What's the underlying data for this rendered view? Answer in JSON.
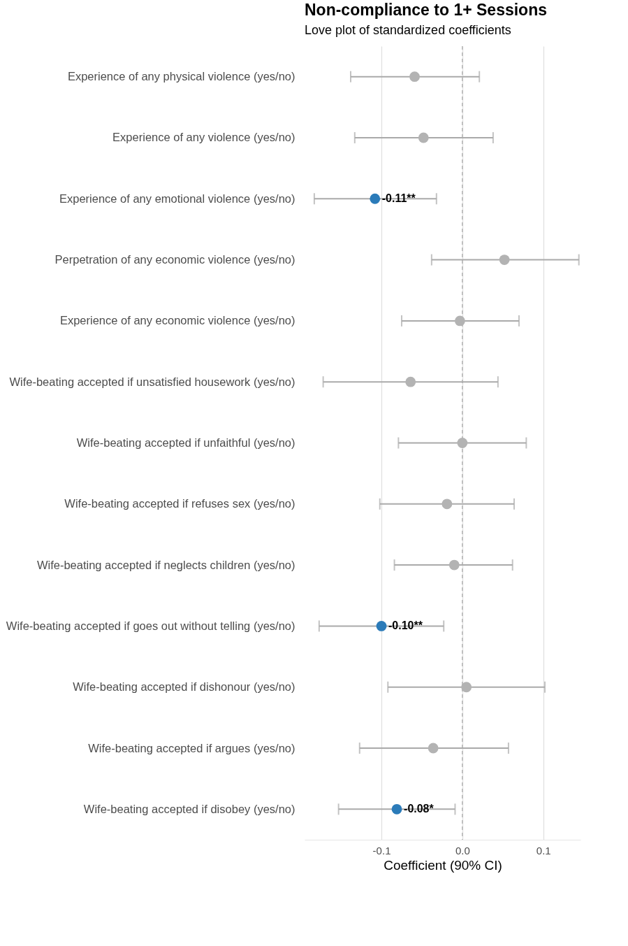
{
  "chart_data": {
    "type": "scatter",
    "title": "Non-compliance to 1+ Sessions",
    "subtitle": "Love plot of standardized coefficients",
    "xlabel": "Coefficient (90% CI)",
    "categories": [
      "Experience of any physical violence (yes/no)",
      "Experience of any violence (yes/no)",
      "Experience of any emotional violence (yes/no)",
      "Perpetration of any economic violence (yes/no)",
      "Experience of any economic violence (yes/no)",
      "Wife-beating accepted if unsatisfied housework (yes/no)",
      "Wife-beating accepted if unfaithful (yes/no)",
      "Wife-beating accepted if refuses sex (yes/no)",
      "Wife-beating accepted if neglects children (yes/no)",
      "Wife-beating accepted if goes out without telling (yes/no)",
      "Wife-beating accepted if dishonour (yes/no)",
      "Wife-beating accepted if argues (yes/no)",
      "Wife-beating accepted if disobey (yes/no)"
    ],
    "values": [
      -0.059,
      -0.048,
      -0.108,
      0.052,
      -0.003,
      -0.064,
      0.0,
      -0.019,
      -0.01,
      -0.1,
      0.005,
      -0.036,
      -0.081
    ],
    "errors": [
      [
        -0.138,
        0.021
      ],
      [
        -0.133,
        0.038
      ],
      [
        -0.183,
        -0.032
      ],
      [
        -0.038,
        0.144
      ],
      [
        -0.075,
        0.07
      ],
      [
        -0.172,
        0.044
      ],
      [
        -0.079,
        0.079
      ],
      [
        -0.102,
        0.064
      ],
      [
        -0.084,
        0.062
      ],
      [
        -0.177,
        -0.023
      ],
      [
        -0.092,
        0.102
      ],
      [
        -0.127,
        0.057
      ],
      [
        -0.153,
        -0.009
      ]
    ],
    "value_labels": [
      null,
      null,
      "-0.11**",
      null,
      null,
      null,
      null,
      null,
      null,
      "-0.10**",
      null,
      null,
      "-0.08*"
    ],
    "colors": [
      "#b3b3b3",
      "#b3b3b3",
      "#2b7bb9",
      "#b3b3b3",
      "#b3b3b3",
      "#b3b3b3",
      "#b3b3b3",
      "#b3b3b3",
      "#b3b3b3",
      "#2b7bb9",
      "#b3b3b3",
      "#b3b3b3",
      "#2b7bb9"
    ],
    "xlim": [
      -0.195,
      0.146
    ],
    "xticks": [
      {
        "value": -0.1,
        "label": "-0.1"
      },
      {
        "value": 0,
        "label": "0.0"
      },
      {
        "value": 0.1,
        "label": "0.1"
      }
    ],
    "ref_lines": [
      {
        "axis": "x",
        "value": 0,
        "label": null,
        "color": "#a6a6a6",
        "line_style": "dashed"
      }
    ],
    "grid": "x",
    "marker": "circle",
    "orientation": "horizontal"
  }
}
